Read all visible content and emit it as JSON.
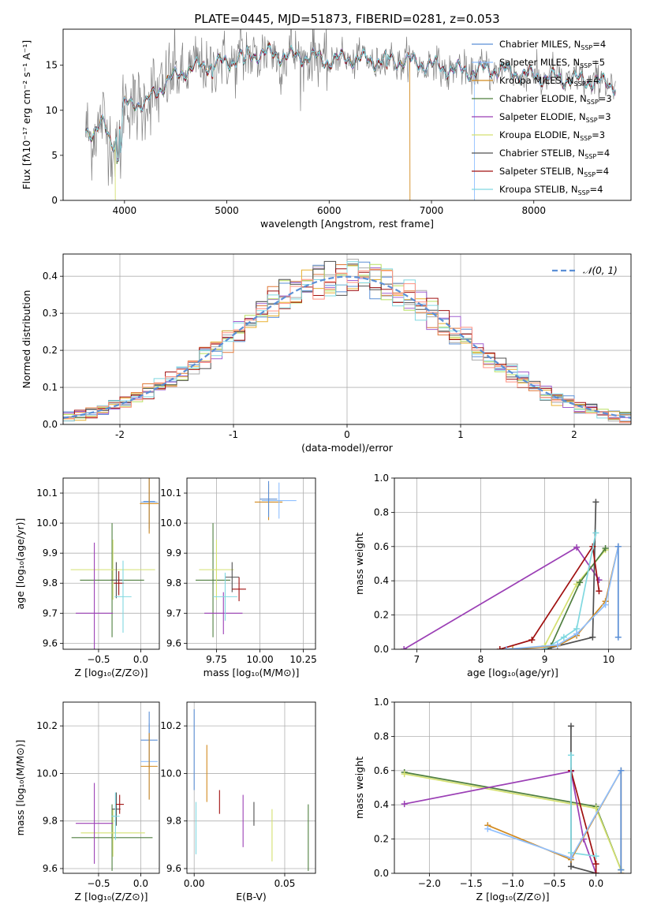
{
  "figure_title": "PLATE=0445, MJD=51873, FIBERID=0281, z=0.053",
  "colors": {
    "data": "#808080",
    "models": [
      "#5b8fd6",
      "#8fbfff",
      "#d28a1f",
      "#4f7f3f",
      "#9b3fb5",
      "#d4e070",
      "#505050",
      "#a01010",
      "#80d8e0"
    ],
    "hist": [
      "#5b8fd6",
      "#e07838",
      "#aaaaaa",
      "#e8b030",
      "#a060d0",
      "#b8e060",
      "#505050",
      "#a01010",
      "#80d8e0",
      "#ff9080"
    ],
    "gauss": "#5b8fd6"
  },
  "chart_data": [
    {
      "id": "spectrum",
      "type": "line",
      "xlabel": "wavelength [Angstrom, rest frame]",
      "ylabel": "Flux [fλ10⁻¹⁷ erg cm⁻² s⁻¹ A⁻¹]",
      "xlim": [
        3400,
        8950
      ],
      "ylim": [
        0,
        19
      ],
      "xticks": [
        4000,
        5000,
        6000,
        7000,
        8000
      ],
      "yticks": [
        0,
        5,
        10,
        15
      ],
      "grid": false,
      "legend_position": "top-right",
      "continuum_knots": {
        "x": [
          3620,
          3700,
          3800,
          3850,
          3900,
          3950,
          4000,
          4100,
          4200,
          4300,
          4400,
          4600,
          4800,
          5000,
          5200,
          5400,
          5600,
          5800,
          6000,
          6200,
          6400,
          6600,
          6800,
          7000,
          7200,
          7400,
          7600,
          7800,
          8000,
          8200,
          8400,
          8600,
          8800
        ],
        "y": [
          8.0,
          7.5,
          8.5,
          7.0,
          6.5,
          8.0,
          10.5,
          11.0,
          10.5,
          12.0,
          13.0,
          14.5,
          15.0,
          15.3,
          16.2,
          16.3,
          16.0,
          16.0,
          15.5,
          15.8,
          15.5,
          15.6,
          15.4,
          15.0,
          14.5,
          14.3,
          14.6,
          14.2,
          13.8,
          13.6,
          13.4,
          13.2,
          12.8
        ]
      },
      "series": [
        {
          "name": "Chabrier MILES, N_SSP=4"
        },
        {
          "name": "Salpeter MILES, N_SSP=5"
        },
        {
          "name": "Kroupa MILES, N_SSP=4"
        },
        {
          "name": "Chabrier ELODIE, N_SSP=3"
        },
        {
          "name": "Salpeter ELODIE, N_SSP=3"
        },
        {
          "name": "Kroupa ELODIE, N_SSP=3"
        },
        {
          "name": "Chabrier STELIB, N_SSP=4"
        },
        {
          "name": "Salpeter STELIB, N_SSP=4"
        },
        {
          "name": "Kroupa STELIB, N_SSP=4"
        }
      ],
      "drops": [
        {
          "x": 3910,
          "series": 5
        },
        {
          "x": 6790,
          "series": 2
        },
        {
          "x": 7420,
          "series": 1
        }
      ]
    },
    {
      "id": "residuals",
      "type": "histogram",
      "xlabel": "(data-model)/error",
      "ylabel": "Normed distribution",
      "xlim": [
        -2.5,
        2.5
      ],
      "ylim": [
        0,
        0.46
      ],
      "xticks": [
        -2,
        -1,
        0,
        1,
        2
      ],
      "yticks": [
        0.0,
        0.1,
        0.2,
        0.3,
        0.4
      ],
      "grid": true,
      "legend_position": "top-right",
      "legend": "𝒩(0, 1)",
      "bin_width": 0.1
    },
    {
      "id": "age-vs-Z",
      "type": "errorbar",
      "xlabel": "Z [log₁₀(Z/Z⊙)]",
      "ylabel": "age  [log₁₀(age/yr)]",
      "xlim": [
        -0.92,
        0.22
      ],
      "ylim": [
        9.58,
        10.15
      ],
      "xticks": [
        -0.5,
        0.0
      ],
      "xticklabels": [
        "−0.5",
        "0.0"
      ],
      "yticks": [
        9.6,
        9.7,
        9.8,
        9.9,
        10.0,
        10.1
      ],
      "grid": true,
      "points": [
        {
          "x": -0.34,
          "y": 9.81,
          "xe": 0.38,
          "ye": 0.19,
          "c": 3
        },
        {
          "x": -0.33,
          "y": 9.845,
          "xe": 0.5,
          "ye": 0.1,
          "c": 5
        },
        {
          "x": -0.55,
          "y": 9.7,
          "xe": 0.22,
          "ye": 0.235,
          "c": 4
        },
        {
          "x": -0.29,
          "y": 9.81,
          "xe": 0.07,
          "ye": 0.06,
          "c": 6
        },
        {
          "x": -0.26,
          "y": 9.8,
          "xe": 0.06,
          "ye": 0.04,
          "c": 7
        },
        {
          "x": -0.21,
          "y": 9.755,
          "xe": 0.1,
          "ye": 0.12,
          "c": 8
        },
        {
          "x": 0.1,
          "y": 10.07,
          "xe": 0.1,
          "ye": 0.1,
          "c": 1
        },
        {
          "x": 0.1,
          "y": 10.072,
          "xe": 0.07,
          "ye": 0.09,
          "c": 0
        },
        {
          "x": 0.1,
          "y": 10.065,
          "xe": 0.11,
          "ye": 0.1,
          "c": 2
        }
      ]
    },
    {
      "id": "age-vs-mass",
      "type": "errorbar",
      "xlabel": "mass [log₁₀(M/M⊙)]",
      "ylabel": "",
      "xlim": [
        9.58,
        10.32
      ],
      "ylim": [
        9.58,
        10.15
      ],
      "xticks": [
        9.75,
        10.0,
        10.25
      ],
      "xticklabels": [
        "9.75",
        "10.00",
        "10.25"
      ],
      "yticks": [
        9.6,
        9.7,
        9.8,
        9.9,
        10.0,
        10.1
      ],
      "grid": true,
      "points": [
        {
          "x": 9.73,
          "y": 9.81,
          "xe": 0.1,
          "ye": 0.19,
          "c": 3
        },
        {
          "x": 9.75,
          "y": 9.845,
          "xe": 0.1,
          "ye": 0.1,
          "c": 5
        },
        {
          "x": 9.79,
          "y": 9.7,
          "xe": 0.11,
          "ye": 0.07,
          "c": 4
        },
        {
          "x": 9.84,
          "y": 9.82,
          "xe": 0.04,
          "ye": 0.05,
          "c": 6
        },
        {
          "x": 9.88,
          "y": 9.78,
          "xe": 0.04,
          "ye": 0.04,
          "c": 7
        },
        {
          "x": 9.8,
          "y": 9.755,
          "xe": 0.07,
          "ye": 0.08,
          "c": 8
        },
        {
          "x": 10.05,
          "y": 10.07,
          "xe": 0.08,
          "ye": 0.06,
          "c": 2
        },
        {
          "x": 10.11,
          "y": 10.075,
          "xe": 0.1,
          "ye": 0.06,
          "c": 1
        },
        {
          "x": 10.05,
          "y": 10.08,
          "xe": 0.05,
          "ye": 0.06,
          "c": 0
        }
      ]
    },
    {
      "id": "weight-vs-age",
      "type": "line",
      "xlabel": "age  [log₁₀(age/yr)]",
      "ylabel": "mass weight",
      "xlim": [
        6.65,
        10.35
      ],
      "ylim": [
        0,
        1.0
      ],
      "xticks": [
        7,
        8,
        9,
        10
      ],
      "yticks": [
        0.0,
        0.2,
        0.4,
        0.6,
        0.8,
        1.0
      ],
      "grid": true,
      "series": [
        {
          "c": 4,
          "x": [
            6.8,
            9.5,
            9.85
          ],
          "y": [
            0.0,
            0.595,
            0.405
          ]
        },
        {
          "c": 5,
          "x": [
            9.0,
            9.5,
            9.95
          ],
          "y": [
            0.02,
            0.38,
            0.58
          ]
        },
        {
          "c": 3,
          "x": [
            9.1,
            9.55,
            9.95
          ],
          "y": [
            0.02,
            0.39,
            0.59
          ]
        },
        {
          "c": 6,
          "x": [
            9.0,
            9.75,
            9.8
          ],
          "y": [
            0.0,
            0.07,
            0.86
          ]
        },
        {
          "c": 7,
          "x": [
            8.3,
            8.8,
            9.75,
            9.85
          ],
          "y": [
            0.0,
            0.055,
            0.6,
            0.34
          ]
        },
        {
          "c": 8,
          "x": [
            9.0,
            9.3,
            9.5,
            9.8
          ],
          "y": [
            0.0,
            0.07,
            0.12,
            0.68
          ]
        },
        {
          "c": 2,
          "x": [
            8.5,
            9.2,
            9.5,
            9.95,
            10.15
          ],
          "y": [
            0.0,
            0.02,
            0.08,
            0.28,
            0.6
          ]
        },
        {
          "c": 1,
          "x": [
            8.4,
            9.2,
            9.5,
            9.95,
            10.15
          ],
          "y": [
            0.0,
            0.025,
            0.09,
            0.26,
            0.6
          ]
        },
        {
          "c": 0,
          "x": [
            10.15,
            10.15
          ],
          "y": [
            0.6,
            0.07
          ]
        }
      ]
    },
    {
      "id": "mass-vs-Z",
      "type": "errorbar",
      "xlabel": "Z [log₁₀(Z/Z⊙)]",
      "ylabel": "mass [log₁₀(M/M⊙)]",
      "xlim": [
        -0.92,
        0.22
      ],
      "ylim": [
        9.58,
        10.3
      ],
      "xticks": [
        -0.5,
        0.0
      ],
      "xticklabels": [
        "−0.5",
        "0.0"
      ],
      "yticks": [
        9.6,
        9.8,
        10.0,
        10.2
      ],
      "grid": true,
      "points": [
        {
          "x": -0.34,
          "y": 9.73,
          "xe": 0.48,
          "ye": 0.14,
          "c": 3
        },
        {
          "x": -0.33,
          "y": 9.75,
          "xe": 0.38,
          "ye": 0.1,
          "c": 5
        },
        {
          "x": -0.55,
          "y": 9.79,
          "xe": 0.22,
          "ye": 0.17,
          "c": 4
        },
        {
          "x": -0.29,
          "y": 9.85,
          "xe": 0.05,
          "ye": 0.07,
          "c": 6
        },
        {
          "x": -0.25,
          "y": 9.87,
          "xe": 0.05,
          "ye": 0.04,
          "c": 7
        },
        {
          "x": -0.3,
          "y": 9.82,
          "xe": 0.05,
          "ye": 0.1,
          "c": 8
        },
        {
          "x": 0.1,
          "y": 10.05,
          "xe": 0.1,
          "ye": 0.16,
          "c": 1
        },
        {
          "x": 0.1,
          "y": 10.14,
          "xe": 0.1,
          "ye": 0.12,
          "c": 0
        },
        {
          "x": 0.1,
          "y": 10.03,
          "xe": 0.1,
          "ye": 0.14,
          "c": 2
        }
      ]
    },
    {
      "id": "mass-vs-EBV",
      "type": "errorbar",
      "xlabel": "E(B-V)",
      "ylabel": "",
      "xlim": [
        -0.004,
        0.067
      ],
      "ylim": [
        9.58,
        10.3
      ],
      "xticks": [
        0.0,
        0.05
      ],
      "xticklabels": [
        "0.00",
        "0.05"
      ],
      "yticks": [
        9.6,
        9.8,
        10.0,
        10.2
      ],
      "grid": true,
      "points": [
        {
          "x": 0.0,
          "y": 10.1,
          "xe": 0,
          "ye": 0.17,
          "c": 0
        },
        {
          "x": 0.001,
          "y": 9.77,
          "xe": 0,
          "ye": 0.11,
          "c": 8
        },
        {
          "x": 0.007,
          "y": 10.0,
          "xe": 0,
          "ye": 0.12,
          "c": 2
        },
        {
          "x": 0.014,
          "y": 9.88,
          "xe": 0,
          "ye": 0.05,
          "c": 7
        },
        {
          "x": 0.027,
          "y": 9.8,
          "xe": 0,
          "ye": 0.11,
          "c": 4
        },
        {
          "x": 0.033,
          "y": 9.83,
          "xe": 0,
          "ye": 0.05,
          "c": 6
        },
        {
          "x": 0.043,
          "y": 9.74,
          "xe": 0,
          "ye": 0.11,
          "c": 5
        },
        {
          "x": 0.063,
          "y": 9.73,
          "xe": 0,
          "ye": 0.14,
          "c": 3
        }
      ]
    },
    {
      "id": "weight-vs-Z",
      "type": "line",
      "xlabel": "Z [log₁₀(Z/Z⊙)]",
      "ylabel": "mass weight",
      "xlim": [
        -2.42,
        0.42
      ],
      "ylim": [
        0,
        1.0
      ],
      "xticks": [
        -2.0,
        -1.5,
        -1.0,
        -0.5,
        0.0
      ],
      "xticklabels": [
        "−2.0",
        "−1.5",
        "−1.0",
        "−0.5",
        "0.0"
      ],
      "yticks": [
        0.0,
        0.2,
        0.4,
        0.6,
        0.8,
        1.0
      ],
      "grid": true,
      "series": [
        {
          "c": 3,
          "x": [
            -2.3,
            0.0,
            0.3
          ],
          "y": [
            0.59,
            0.39,
            0.02
          ]
        },
        {
          "c": 5,
          "x": [
            -2.3,
            0.0,
            0.3
          ],
          "y": [
            0.58,
            0.38,
            0.02
          ]
        },
        {
          "c": 4,
          "x": [
            -2.3,
            -0.3,
            -0.15,
            0.0
          ],
          "y": [
            0.405,
            0.595,
            0.2,
            0.0
          ]
        },
        {
          "c": 6,
          "x": [
            -0.3,
            -0.3,
            0.0
          ],
          "y": [
            0.86,
            0.04,
            0.0
          ]
        },
        {
          "c": 7,
          "x": [
            -0.3,
            0.0,
            0.0
          ],
          "y": [
            0.6,
            0.055,
            0.0
          ]
        },
        {
          "c": 8,
          "x": [
            -0.3,
            -0.3,
            0.0
          ],
          "y": [
            0.69,
            0.12,
            0.1
          ]
        },
        {
          "c": 2,
          "x": [
            -1.3,
            -0.3,
            0.3,
            0.3
          ],
          "y": [
            0.28,
            0.08,
            0.6,
            0.0
          ]
        },
        {
          "c": 1,
          "x": [
            -1.3,
            -0.3,
            0.3
          ],
          "y": [
            0.26,
            0.09,
            0.6
          ]
        },
        {
          "c": 0,
          "x": [
            0.3,
            0.3
          ],
          "y": [
            0.6,
            0.02
          ]
        }
      ]
    }
  ]
}
